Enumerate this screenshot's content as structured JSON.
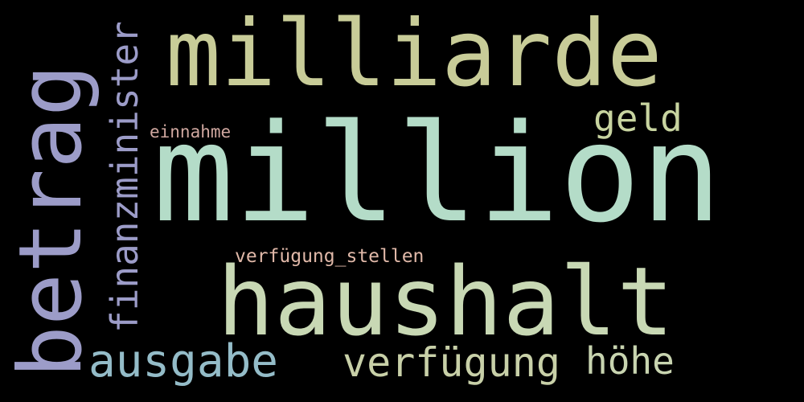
{
  "words": {
    "million": {
      "text": "million",
      "color": "#b4dcc8"
    },
    "milliarde": {
      "text": "milliarde",
      "color": "#c8cc98"
    },
    "haushalt": {
      "text": "haushalt",
      "color": "#c8d8b4"
    },
    "betrag": {
      "text": "betrag",
      "color": "#9c9cc8"
    },
    "finanzminister": {
      "text": "finanzminister",
      "color": "#9c9cc8"
    },
    "ausgabe": {
      "text": "ausgabe",
      "color": "#94bcc8"
    },
    "verfuegung": {
      "text": "verfügung",
      "color": "#c8d0a8"
    },
    "hoehe": {
      "text": "höhe",
      "color": "#c8d4b0"
    },
    "geld": {
      "text": "geld",
      "color": "#c8d4a0"
    },
    "einnahme": {
      "text": "einnahme",
      "color": "#d0a8a0"
    },
    "verfuegung_stellen": {
      "text": "verfügung_stellen",
      "color": "#e0b8a8"
    }
  }
}
